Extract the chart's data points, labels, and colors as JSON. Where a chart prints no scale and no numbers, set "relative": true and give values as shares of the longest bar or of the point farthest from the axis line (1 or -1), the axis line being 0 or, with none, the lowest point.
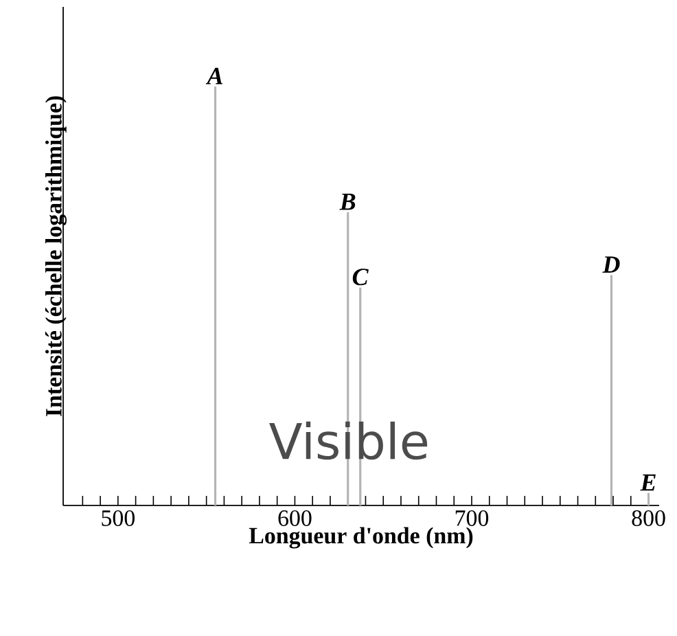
{
  "chart_data": {
    "type": "bar",
    "relative": true,
    "xlabel": "Longueur d'onde (nm)",
    "ylabel": "Intensité (échelle logarithmique)",
    "color": "#b4b4b4",
    "x": [
      555,
      630,
      637,
      779,
      800
    ],
    "values": [
      1,
      0.7,
      0.52,
      0.55,
      0.03
    ],
    "xlim": [
      469,
      806
    ],
    "xticks": [
      {
        "value": 480,
        "label": null
      },
      {
        "value": 490,
        "label": null
      },
      {
        "value": 500,
        "label": "500"
      },
      {
        "value": 510,
        "label": null
      },
      {
        "value": 520,
        "label": null
      },
      {
        "value": 530,
        "label": null
      },
      {
        "value": 540,
        "label": null
      },
      {
        "value": 550,
        "label": null
      },
      {
        "value": 560,
        "label": null
      },
      {
        "value": 570,
        "label": null
      },
      {
        "value": 580,
        "label": null
      },
      {
        "value": 590,
        "label": null
      },
      {
        "value": 600,
        "label": "600"
      },
      {
        "value": 610,
        "label": null
      },
      {
        "value": 620,
        "label": null
      },
      {
        "value": 630,
        "label": null
      },
      {
        "value": 640,
        "label": null
      },
      {
        "value": 650,
        "label": null
      },
      {
        "value": 660,
        "label": null
      },
      {
        "value": 670,
        "label": null
      },
      {
        "value": 680,
        "label": null
      },
      {
        "value": 690,
        "label": null
      },
      {
        "value": 700,
        "label": "700"
      },
      {
        "value": 710,
        "label": null
      },
      {
        "value": 720,
        "label": null
      },
      {
        "value": 730,
        "label": null
      },
      {
        "value": 740,
        "label": null
      },
      {
        "value": 750,
        "label": null
      },
      {
        "value": 760,
        "label": null
      },
      {
        "value": 770,
        "label": null
      },
      {
        "value": 780,
        "label": null
      },
      {
        "value": 790,
        "label": null
      },
      {
        "value": 800,
        "label": "800"
      }
    ],
    "annotations": [
      {
        "text": "*A*",
        "x": 555,
        "y": 1
      },
      {
        "text": "*B*",
        "x": 630,
        "y": 0.7
      },
      {
        "text": "*C*",
        "x": 637,
        "y": 0.52
      },
      {
        "text": "*D*",
        "x": 779,
        "y": 0.55
      },
      {
        "text": "*E*",
        "x": 800,
        "y": 0.03
      },
      "Visible"
    ]
  }
}
